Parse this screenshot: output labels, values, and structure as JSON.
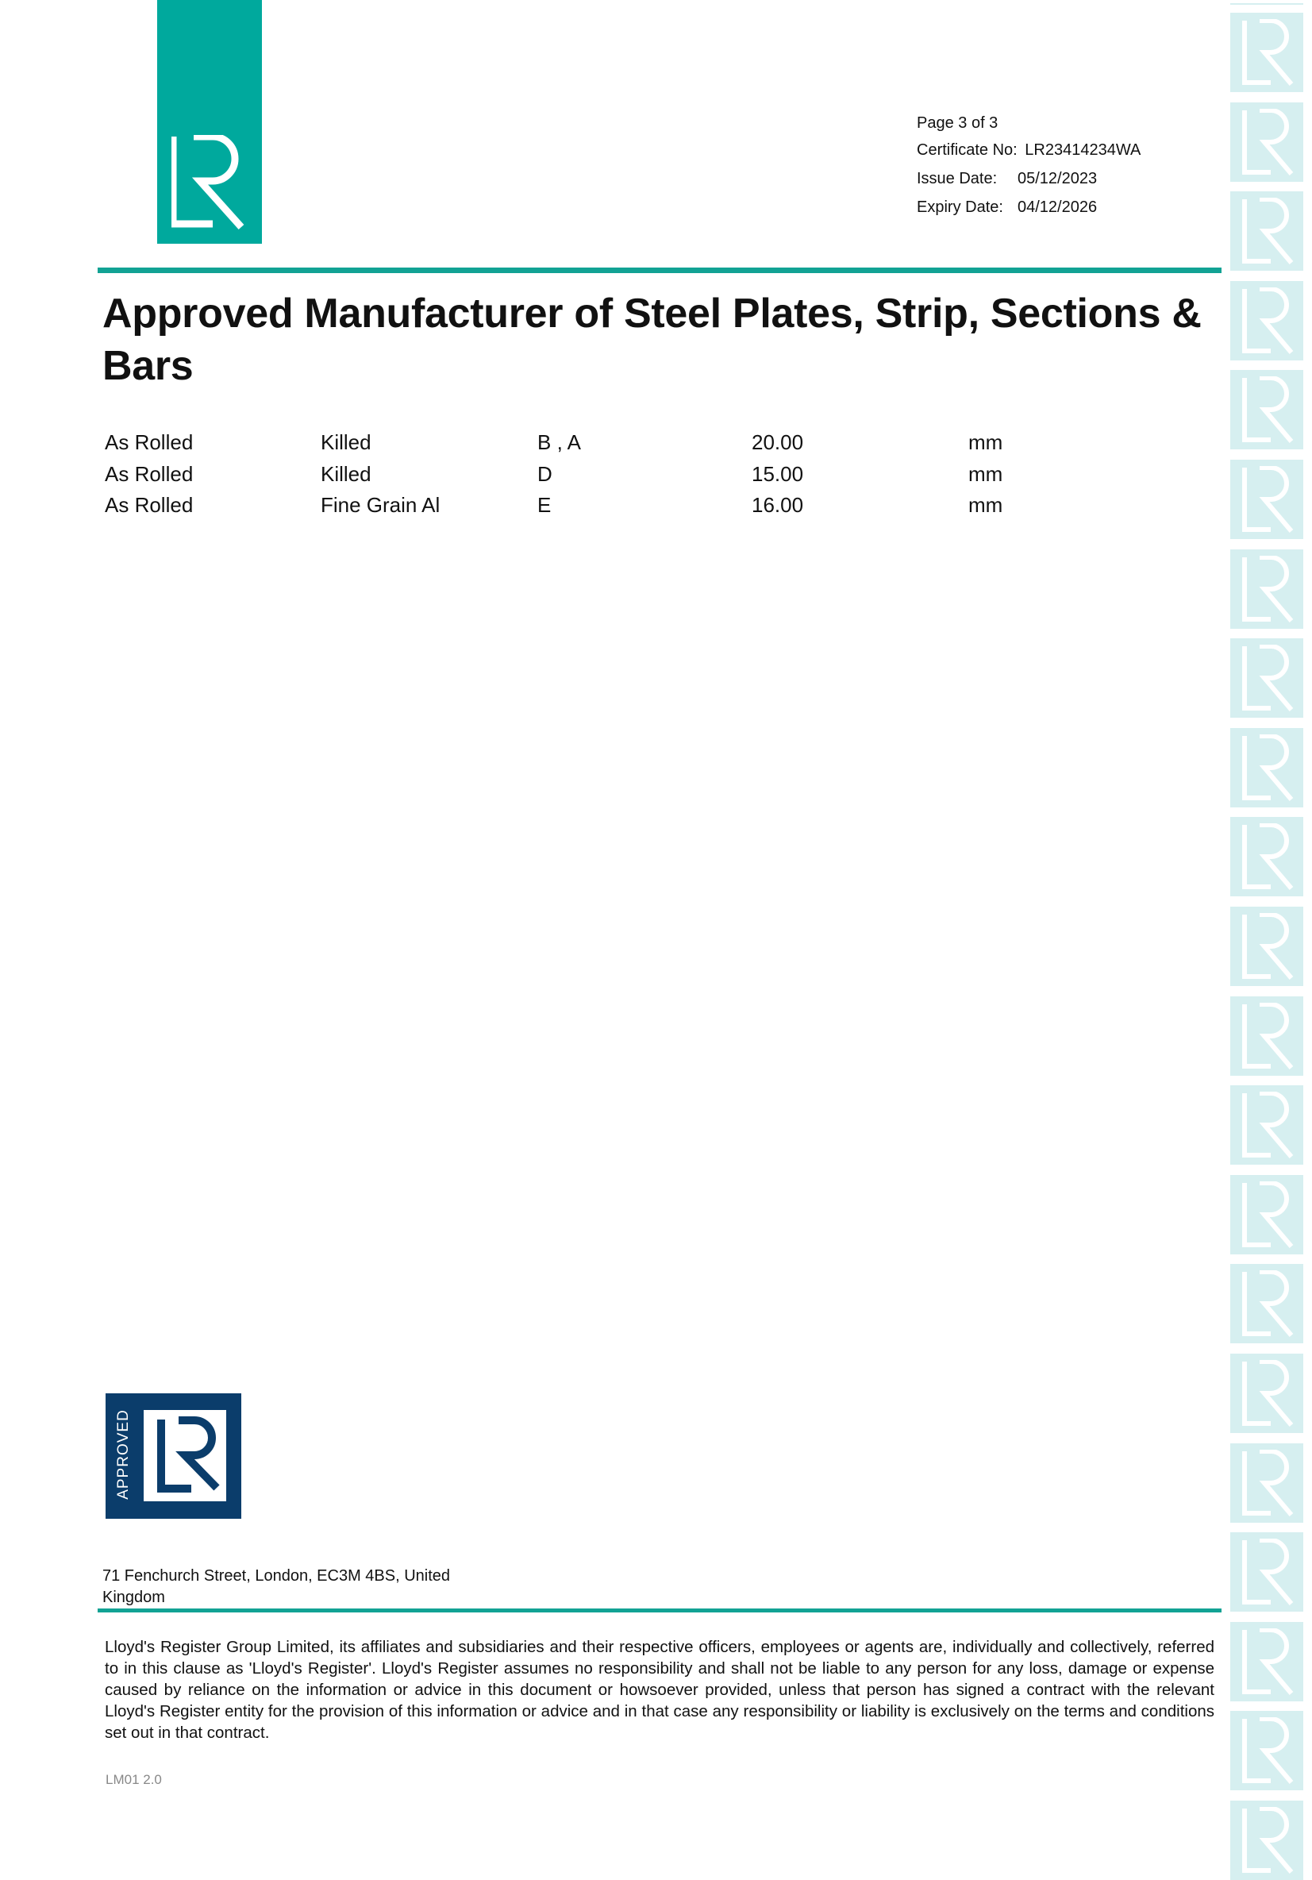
{
  "header": {
    "page": "Page 3 of 3",
    "certificate_label": "Certificate No:",
    "certificate_no": "LR23414234WA",
    "issue_label": "Issue Date:",
    "issue_date": "05/12/2023",
    "expiry_label": "Expiry Date:",
    "expiry_date": "04/12/2026"
  },
  "logos": {
    "top": "LR",
    "approved_word": "APPROVED",
    "approved_mark": "LR",
    "watermark": "LR"
  },
  "colors": {
    "teal": "#00a99d",
    "navy": "#0b3d6b",
    "watermark": "#d6eff0"
  },
  "title": "Approved Manufacturer of Steel Plates, Strip, Sections & Bars",
  "rows": [
    [
      "As Rolled",
      "Killed",
      "B , A",
      "20.00",
      "mm"
    ],
    [
      "As Rolled",
      "Killed",
      "D",
      "15.00",
      "mm"
    ],
    [
      "As Rolled",
      "Fine Grain Al",
      "E",
      "16.00",
      "mm"
    ]
  ],
  "footer": {
    "address": "71 Fenchurch Street, London, EC3M 4BS, United Kingdom",
    "disclaimer": "Lloyd's Register Group Limited, its affiliates and subsidiaries and their respective officers, employees or agents are, individually and collectively, referred to in this clause as 'Lloyd's Register'. Lloyd's Register assumes no responsibility and shall not be liable to any person for any loss, damage or expense caused by reliance on the information or advice in this document or howsoever provided, unless that person has signed a contract with the relevant Lloyd's Register entity for the provision of this information or advice and in that case any responsibility or liability is exclusively on the terms and conditions set out in that contract.",
    "code": "LM01 2.0"
  }
}
